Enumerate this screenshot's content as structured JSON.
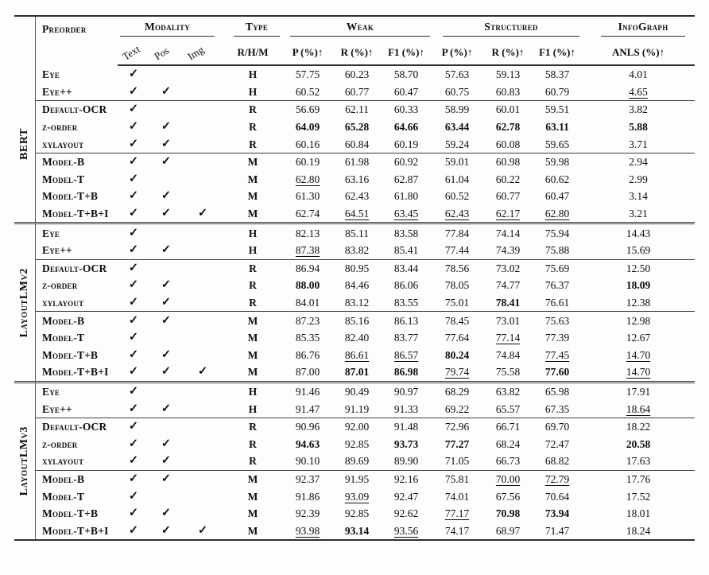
{
  "colors": {
    "text": "#0d0d0d",
    "rule": "#2e2e2e"
  },
  "header": {
    "preorder": "Preorder",
    "modality": "Modality",
    "type": "Type",
    "weak": "Weak",
    "structured": "Structured",
    "infograph": "InfoGraph",
    "modality_cols": [
      "Text",
      "Pos",
      "Img"
    ],
    "type_sub": "R/H/M",
    "metric_cols": [
      "P (%)↑",
      "R (%)↑",
      "F1 (%)↑",
      "P (%)↑",
      "R (%)↑",
      "F1 (%)↑",
      "ANLS (%)↑"
    ]
  },
  "checkmark_glyph": "✓",
  "sections": [
    {
      "group": "BERT",
      "rows": [
        {
          "label": "Eye",
          "marks": [
            "✓",
            "",
            ""
          ],
          "type": "H",
          "values": [
            "57.75",
            "60.23",
            "58.70",
            "57.63",
            "59.13",
            "58.37",
            "4.01"
          ],
          "styles": [
            "",
            "",
            "",
            "",
            "",
            "",
            ""
          ]
        },
        {
          "label": "Eye++",
          "marks": [
            "✓",
            "✓",
            ""
          ],
          "type": "H",
          "values": [
            "60.52",
            "60.77",
            "60.47",
            "60.75",
            "60.83",
            "60.79",
            "4.65"
          ],
          "styles": [
            "",
            "",
            "",
            "",
            "",
            "",
            "u"
          ]
        },
        {
          "label": "Default-OCR",
          "marks": [
            "✓",
            "",
            ""
          ],
          "type": "R",
          "values": [
            "56.69",
            "62.11",
            "60.33",
            "58.99",
            "60.01",
            "59.51",
            "3.82"
          ],
          "styles": [
            "",
            "",
            "",
            "",
            "",
            "",
            ""
          ]
        },
        {
          "label": "z-order",
          "marks": [
            "✓",
            "✓",
            ""
          ],
          "type": "R",
          "values": [
            "64.09",
            "65.28",
            "64.66",
            "63.44",
            "62.78",
            "63.11",
            "5.88"
          ],
          "styles": [
            "b",
            "b",
            "b",
            "b",
            "b",
            "b",
            "b"
          ]
        },
        {
          "label": "xylayout",
          "marks": [
            "✓",
            "✓",
            ""
          ],
          "type": "R",
          "values": [
            "60.16",
            "60.84",
            "60.19",
            "59.24",
            "60.08",
            "59.65",
            "3.71"
          ],
          "styles": [
            "",
            "",
            "",
            "",
            "",
            "",
            ""
          ]
        },
        {
          "label": "Model-B",
          "marks": [
            "✓",
            "✓",
            ""
          ],
          "type": "M",
          "values": [
            "60.19",
            "61.98",
            "60.92",
            "59.01",
            "60.98",
            "59.98",
            "2.94"
          ],
          "styles": [
            "",
            "",
            "",
            "",
            "",
            "",
            ""
          ]
        },
        {
          "label": "Model-T",
          "marks": [
            "✓",
            "",
            ""
          ],
          "type": "M",
          "values": [
            "62.80",
            "63.16",
            "62.87",
            "61.04",
            "60.22",
            "60.62",
            "2.99"
          ],
          "styles": [
            "u",
            "",
            "",
            "",
            "",
            "",
            ""
          ]
        },
        {
          "label": "Model-T+B",
          "marks": [
            "✓",
            "✓",
            ""
          ],
          "type": "M",
          "values": [
            "61.30",
            "62.43",
            "61.80",
            "60.52",
            "60.77",
            "60.47",
            "3.14"
          ],
          "styles": [
            "",
            "",
            "",
            "",
            "",
            "",
            ""
          ]
        },
        {
          "label": "Model-T+B+I",
          "marks": [
            "✓",
            "✓",
            "✓"
          ],
          "type": "M",
          "values": [
            "62.74",
            "64.51",
            "63.45",
            "62.43",
            "62.17",
            "62.80",
            "3.21"
          ],
          "styles": [
            "",
            "u",
            "u",
            "u",
            "u",
            "u",
            ""
          ]
        }
      ]
    },
    {
      "group": "LayoutLMv2",
      "rows": [
        {
          "label": "Eye",
          "marks": [
            "✓",
            "",
            ""
          ],
          "type": "H",
          "values": [
            "82.13",
            "85.11",
            "83.58",
            "77.84",
            "74.14",
            "75.94",
            "14.43"
          ],
          "styles": [
            "",
            "",
            "",
            "",
            "",
            "",
            ""
          ]
        },
        {
          "label": "Eye++",
          "marks": [
            "✓",
            "✓",
            ""
          ],
          "type": "H",
          "values": [
            "87.38",
            "83.82",
            "85.41",
            "77.44",
            "74.39",
            "75.88",
            "15.69"
          ],
          "styles": [
            "u",
            "",
            "",
            "",
            "",
            "",
            ""
          ]
        },
        {
          "label": "Default-OCR",
          "marks": [
            "✓",
            "",
            ""
          ],
          "type": "R",
          "values": [
            "86.94",
            "80.95",
            "83.44",
            "78.56",
            "73.02",
            "75.69",
            "12.50"
          ],
          "styles": [
            "",
            "",
            "",
            "",
            "",
            "",
            ""
          ]
        },
        {
          "label": "z-order",
          "marks": [
            "✓",
            "✓",
            ""
          ],
          "type": "R",
          "values": [
            "88.00",
            "84.46",
            "86.06",
            "78.05",
            "74.77",
            "76.37",
            "18.09"
          ],
          "styles": [
            "b",
            "",
            "",
            "",
            "",
            "",
            "b"
          ]
        },
        {
          "label": "xylayout",
          "marks": [
            "✓",
            "✓",
            ""
          ],
          "type": "R",
          "values": [
            "84.01",
            "83.12",
            "83.55",
            "75.01",
            "78.41",
            "76.61",
            "12.38"
          ],
          "styles": [
            "",
            "",
            "",
            "",
            "b",
            "",
            ""
          ]
        },
        {
          "label": "Model-B",
          "marks": [
            "✓",
            "✓",
            ""
          ],
          "type": "M",
          "values": [
            "87.23",
            "85.16",
            "86.13",
            "78.45",
            "73.01",
            "75.63",
            "12.98"
          ],
          "styles": [
            "",
            "",
            "",
            "",
            "",
            "",
            ""
          ]
        },
        {
          "label": "Model-T",
          "marks": [
            "✓",
            "",
            ""
          ],
          "type": "M",
          "values": [
            "85.35",
            "82.40",
            "83.77",
            "77.64",
            "77.14",
            "77.39",
            "12.67"
          ],
          "styles": [
            "",
            "",
            "",
            "",
            "u",
            "",
            ""
          ]
        },
        {
          "label": "Model-T+B",
          "marks": [
            "✓",
            "✓",
            ""
          ],
          "type": "M",
          "values": [
            "86.76",
            "86.61",
            "86.57",
            "80.24",
            "74.84",
            "77.45",
            "14.70"
          ],
          "styles": [
            "",
            "u",
            "u",
            "b",
            "",
            "u",
            "u"
          ]
        },
        {
          "label": "Model-T+B+I",
          "marks": [
            "✓",
            "✓",
            "✓"
          ],
          "type": "M",
          "values": [
            "87.00",
            "87.01",
            "86.98",
            "79.74",
            "75.58",
            "77.60",
            "14.70"
          ],
          "styles": [
            "",
            "b",
            "b",
            "u",
            "",
            "b",
            "u"
          ]
        }
      ]
    },
    {
      "group": "LayoutLMv3",
      "rows": [
        {
          "label": "Eye",
          "marks": [
            "✓",
            "",
            ""
          ],
          "type": "H",
          "values": [
            "91.46",
            "90.49",
            "90.97",
            "68.29",
            "63.82",
            "65.98",
            "17.91"
          ],
          "styles": [
            "",
            "",
            "",
            "",
            "",
            "",
            ""
          ]
        },
        {
          "label": "Eye++",
          "marks": [
            "✓",
            "✓",
            ""
          ],
          "type": "H",
          "values": [
            "91.47",
            "91.19",
            "91.33",
            "69.22",
            "65.57",
            "67.35",
            "18.64"
          ],
          "styles": [
            "",
            "",
            "",
            "",
            "",
            "",
            "u"
          ]
        },
        {
          "label": "Default-OCR",
          "marks": [
            "✓",
            "",
            ""
          ],
          "type": "R",
          "values": [
            "90.96",
            "92.00",
            "91.48",
            "72.96",
            "66.71",
            "69.70",
            "18.22"
          ],
          "styles": [
            "",
            "",
            "",
            "",
            "",
            "",
            ""
          ]
        },
        {
          "label": "z-order",
          "marks": [
            "✓",
            "✓",
            ""
          ],
          "type": "R",
          "values": [
            "94.63",
            "92.85",
            "93.73",
            "77.27",
            "68.24",
            "72.47",
            "20.58"
          ],
          "styles": [
            "b",
            "",
            "b",
            "b",
            "",
            "",
            "b"
          ]
        },
        {
          "label": "xylayout",
          "marks": [
            "✓",
            "✓",
            ""
          ],
          "type": "R",
          "values": [
            "90.10",
            "89.69",
            "89.90",
            "71.05",
            "66.73",
            "68.82",
            "17.63"
          ],
          "styles": [
            "",
            "",
            "",
            "",
            "",
            "",
            ""
          ]
        },
        {
          "label": "Model-B",
          "marks": [
            "✓",
            "✓",
            ""
          ],
          "type": "M",
          "values": [
            "92.37",
            "91.95",
            "92.16",
            "75.81",
            "70.00",
            "72.79",
            "17.76"
          ],
          "styles": [
            "",
            "",
            "",
            "",
            "u",
            "u",
            ""
          ]
        },
        {
          "label": "Model-T",
          "marks": [
            "✓",
            "",
            ""
          ],
          "type": "M",
          "values": [
            "91.86",
            "93.09",
            "92.47",
            "74.01",
            "67.56",
            "70.64",
            "17.52"
          ],
          "styles": [
            "",
            "u",
            "",
            "",
            "",
            "",
            ""
          ]
        },
        {
          "label": "Model-T+B",
          "marks": [
            "✓",
            "✓",
            ""
          ],
          "type": "M",
          "values": [
            "92.39",
            "92.85",
            "92.62",
            "77.17",
            "70.98",
            "73.94",
            "18.01"
          ],
          "styles": [
            "",
            "",
            "",
            "u",
            "b",
            "b",
            ""
          ]
        },
        {
          "label": "Model-T+B+I",
          "marks": [
            "✓",
            "✓",
            "✓"
          ],
          "type": "M",
          "values": [
            "93.98",
            "93.14",
            "93.56",
            "74.17",
            "68.97",
            "71.47",
            "18.24"
          ],
          "styles": [
            "u",
            "b",
            "u",
            "",
            "",
            "",
            ""
          ]
        }
      ]
    }
  ]
}
